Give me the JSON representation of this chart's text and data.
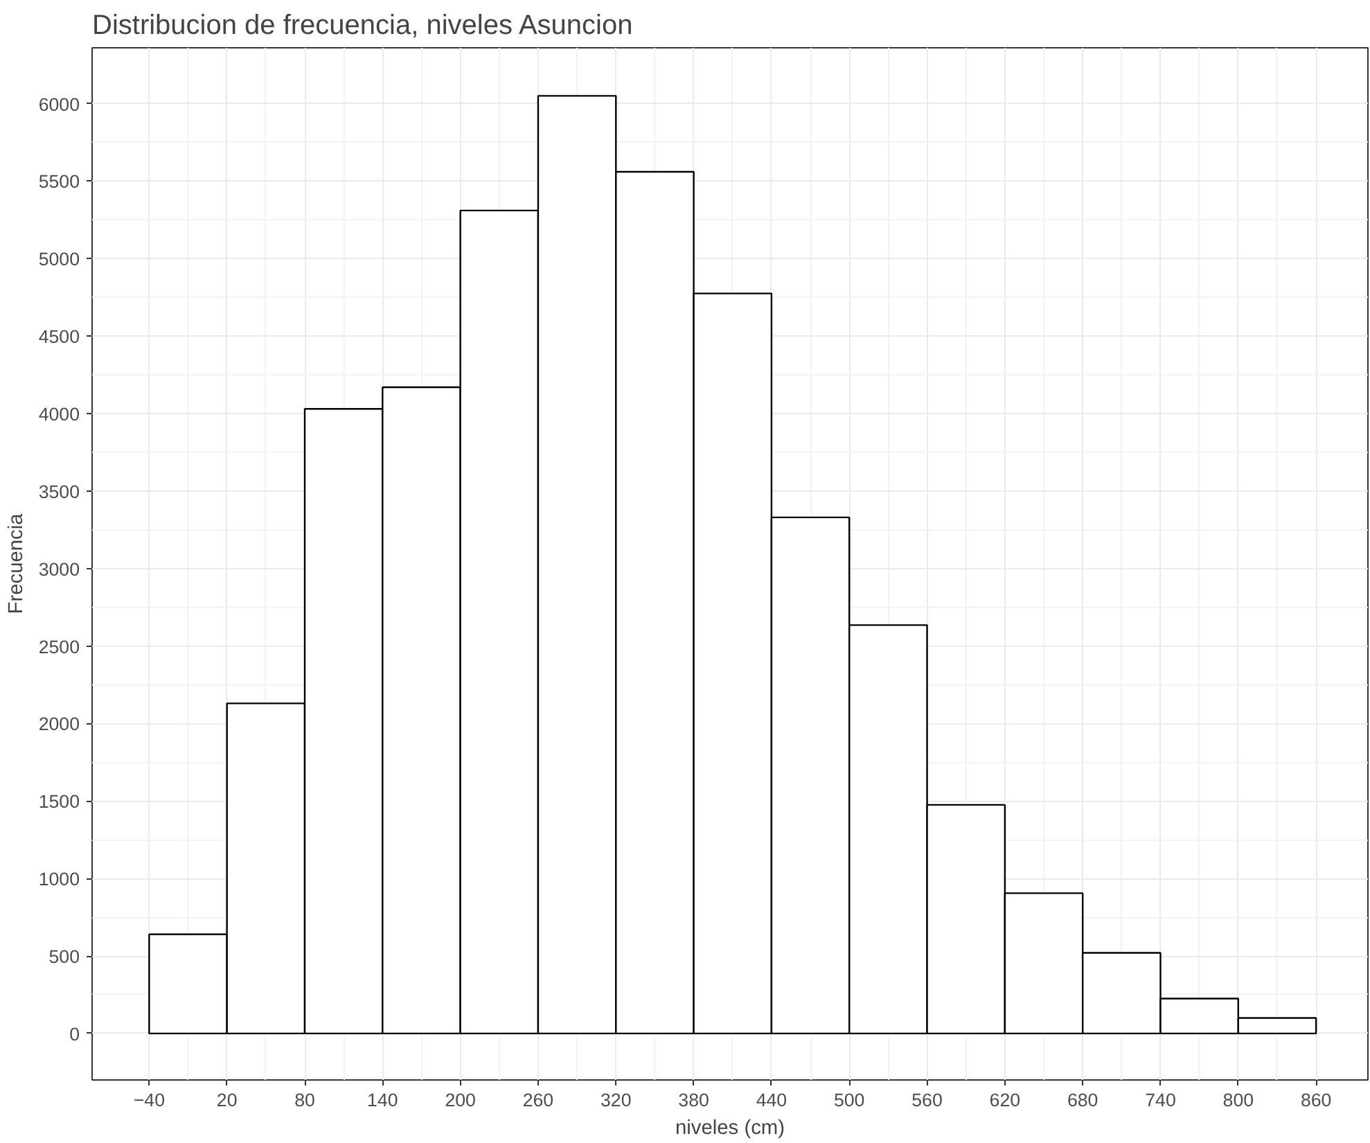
{
  "chart_data": {
    "type": "histogram",
    "title": "Distribucion de frecuencia, niveles Asuncion",
    "xlabel": "niveles (cm)",
    "ylabel": "Frecuencia",
    "bins": [
      -40,
      20,
      80,
      140,
      200,
      260,
      320,
      380,
      440,
      500,
      560,
      620,
      680,
      740,
      800,
      860
    ],
    "values": [
      640,
      2130,
      4030,
      4170,
      5310,
      6050,
      5560,
      4775,
      3330,
      2635,
      1475,
      905,
      520,
      225,
      100
    ],
    "color": "#ffffff",
    "xlim": [
      -84,
      900
    ],
    "ylim": [
      -300,
      6360
    ],
    "xticks": [
      -40,
      20,
      80,
      140,
      200,
      260,
      320,
      380,
      440,
      500,
      560,
      620,
      680,
      740,
      800,
      860
    ],
    "yticks": [
      0,
      500,
      1000,
      1500,
      2000,
      2500,
      3000,
      3500,
      4000,
      4500,
      5000,
      5500,
      6000
    ],
    "grid": true
  }
}
